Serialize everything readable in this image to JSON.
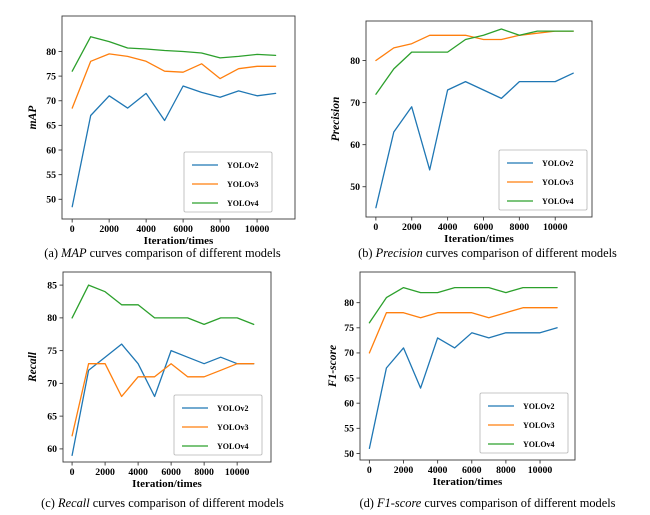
{
  "figure": {
    "background": "#ffffff",
    "series_colors": [
      "#1f77b4",
      "#ff7f0e",
      "#2ca02c"
    ]
  },
  "chart_data": [
    {
      "type": "line",
      "id": "map",
      "ylabel": "mAP",
      "xlabel": "Iteration/times",
      "caption": {
        "prefix": "(a) ",
        "italic": "MAP",
        "suffix": " curves comparison of different models"
      },
      "x": [
        0,
        1000,
        2000,
        3000,
        4000,
        5000,
        6000,
        7000,
        8000,
        9000,
        10000,
        11000
      ],
      "xticks": [
        0,
        2000,
        4000,
        6000,
        8000,
        10000
      ],
      "yticks": [
        50,
        55,
        60,
        65,
        70,
        75,
        80
      ],
      "xlim": [
        -550,
        12050
      ],
      "ylim": [
        46,
        87.2
      ],
      "grid": false,
      "legend_position": "lower right",
      "series": [
        {
          "name": "YOLOv2",
          "color": "#1f77b4",
          "values": [
            48.5,
            67,
            71,
            68.5,
            71.5,
            66,
            73,
            71.7,
            70.7,
            72,
            71,
            71.5
          ]
        },
        {
          "name": "YOLOv3",
          "color": "#ff7f0e",
          "values": [
            68.5,
            78,
            79.5,
            79,
            78,
            76,
            75.8,
            77.5,
            74.5,
            76.5,
            77,
            77
          ]
        },
        {
          "name": "YOLOv4",
          "color": "#2ca02c",
          "values": [
            76,
            83,
            82,
            80.7,
            80.5,
            80.2,
            80,
            79.7,
            78.7,
            79,
            79.4,
            79.2
          ]
        }
      ]
    },
    {
      "type": "line",
      "id": "precision",
      "ylabel": "Precision",
      "xlabel": "Iteration/times",
      "caption": {
        "prefix": "(b) ",
        "italic": "Precision",
        "suffix": " curves comparison of different models"
      },
      "x": [
        0,
        1000,
        2000,
        3000,
        4000,
        5000,
        6000,
        7000,
        8000,
        9000,
        10000,
        11000
      ],
      "xticks": [
        0,
        2000,
        4000,
        6000,
        8000,
        10000
      ],
      "yticks": [
        50,
        60,
        70,
        80
      ],
      "xlim": [
        -550,
        12050
      ],
      "ylim": [
        42.8,
        89.4
      ],
      "grid": false,
      "legend_position": "lower right",
      "series": [
        {
          "name": "YOLOv2",
          "color": "#1f77b4",
          "values": [
            45,
            63,
            69,
            54,
            73,
            75,
            73,
            71,
            75,
            75,
            75,
            77
          ]
        },
        {
          "name": "YOLOv3",
          "color": "#ff7f0e",
          "values": [
            80,
            83,
            84,
            86,
            86,
            86,
            85,
            85,
            86,
            86.5,
            87,
            87
          ]
        },
        {
          "name": "YOLOv4",
          "color": "#2ca02c",
          "values": [
            72,
            78,
            82,
            82,
            82,
            85,
            86,
            87.5,
            86,
            87,
            87,
            87
          ]
        }
      ]
    },
    {
      "type": "line",
      "id": "recall",
      "ylabel": "Recall",
      "xlabel": "Iteration/times",
      "caption": {
        "prefix": "(c) ",
        "italic": "Recall",
        "suffix": " curves comparison of different models"
      },
      "x": [
        0,
        1000,
        2000,
        3000,
        4000,
        5000,
        6000,
        7000,
        8000,
        9000,
        10000,
        11000
      ],
      "xticks": [
        0,
        2000,
        4000,
        6000,
        8000,
        10000
      ],
      "yticks": [
        60,
        65,
        70,
        75,
        80,
        85
      ],
      "xlim": [
        -550,
        12050
      ],
      "ylim": [
        58,
        87
      ],
      "grid": false,
      "legend_position": "lower right",
      "series": [
        {
          "name": "YOLOv2",
          "color": "#1f77b4",
          "values": [
            59,
            72,
            74,
            76,
            73,
            68,
            75,
            74,
            73,
            74,
            73,
            73
          ]
        },
        {
          "name": "YOLOv3",
          "color": "#ff7f0e",
          "values": [
            62,
            73,
            73,
            68,
            71,
            71,
            73,
            71,
            71,
            72,
            73,
            73
          ]
        },
        {
          "name": "YOLOv4",
          "color": "#2ca02c",
          "values": [
            80,
            85,
            84,
            82,
            82,
            80,
            80,
            80,
            79,
            80,
            80,
            79
          ]
        }
      ]
    },
    {
      "type": "line",
      "id": "f1-score",
      "ylabel": "F1-score",
      "xlabel": "Iteration/times",
      "caption": {
        "prefix": "(d) ",
        "italic": "F1-score",
        "suffix": " curves comparison of different models"
      },
      "x": [
        0,
        1000,
        2000,
        3000,
        4000,
        5000,
        6000,
        7000,
        8000,
        9000,
        10000,
        11000
      ],
      "xticks": [
        0,
        2000,
        4000,
        6000,
        8000,
        10000
      ],
      "yticks": [
        50,
        55,
        60,
        65,
        70,
        75,
        80
      ],
      "xlim": [
        -550,
        12050
      ],
      "ylim": [
        48.7,
        86.1
      ],
      "grid": false,
      "legend_position": "lower right",
      "series": [
        {
          "name": "YOLOv2",
          "color": "#1f77b4",
          "values": [
            51,
            67,
            71,
            63,
            73,
            71,
            74,
            73,
            74,
            74,
            74,
            75
          ]
        },
        {
          "name": "YOLOv3",
          "color": "#ff7f0e",
          "values": [
            70,
            78,
            78,
            77,
            78,
            78,
            78,
            77,
            78,
            79,
            79,
            79
          ]
        },
        {
          "name": "YOLOv4",
          "color": "#2ca02c",
          "values": [
            76,
            81,
            83,
            82,
            82,
            83,
            83,
            83,
            82,
            83,
            83,
            83
          ]
        }
      ]
    }
  ]
}
